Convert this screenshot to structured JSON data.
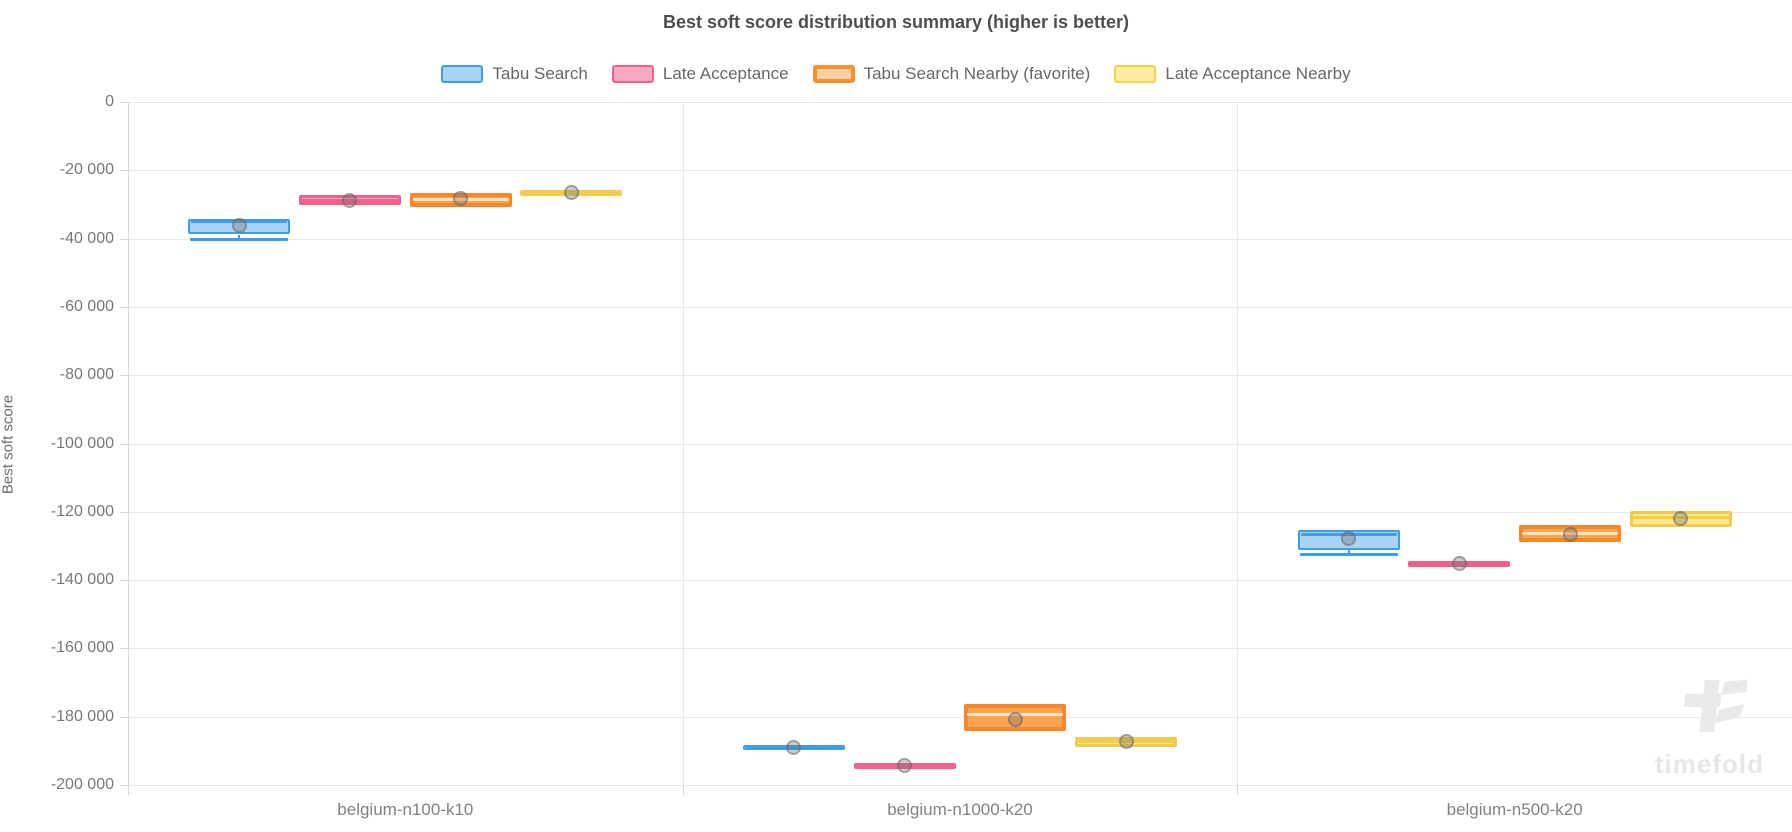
{
  "title": "Best soft score distribution summary (higher is better)",
  "legend": {
    "items": [
      {
        "label": "Tabu Search",
        "fill": "#A9D3F3",
        "border": "#3E9DE5",
        "border_width": 2
      },
      {
        "label": "Late Acceptance",
        "fill": "#F8A9C2",
        "border": "#F0608A",
        "border_width": 2
      },
      {
        "label": "Tabu Search Nearby (favorite)",
        "fill": "#F9CFA3",
        "border": "#F9902F",
        "border_width": 4
      },
      {
        "label": "Late Acceptance Nearby",
        "fill": "#FBEBA3",
        "border": "#F6CF52",
        "border_width": 2
      }
    ]
  },
  "y_axis": {
    "title": "Best soft score",
    "tick_labels": [
      "0",
      "-20 000",
      "-40 000",
      "-60 000",
      "-80 000",
      "-100 000",
      "-120 000",
      "-140 000",
      "-160 000",
      "-180 000",
      "-200 000"
    ]
  },
  "x_axis": {
    "categories": [
      "belgium-n100-k10",
      "belgium-n1000-k20",
      "belgium-n500-k20"
    ]
  },
  "watermark": {
    "text": "timefold"
  },
  "chart_data": {
    "type": "boxplot",
    "title": "Best soft score distribution summary (higher is better)",
    "xlabel": "",
    "ylabel": "Best soft score",
    "ylim": [
      -200000,
      0
    ],
    "grid": true,
    "legend_position": "top",
    "categories": [
      "belgium-n100-k10",
      "belgium-n1000-k20",
      "belgium-n500-k20"
    ],
    "series": [
      {
        "name": "Tabu Search",
        "border": "#3E9DE5",
        "fill": "#A9D3F3",
        "median_color": "#3E9DE5",
        "border_width": 2.5,
        "boxes": [
          {
            "low": -40100,
            "q1": -38800,
            "median": -35100,
            "q3": -34300,
            "high": -34100,
            "mean": -36200
          },
          {
            "low": -190100,
            "q1": -189900,
            "median": -189000,
            "q3": -188200,
            "high": -188000,
            "mean": -189100
          },
          {
            "low": -132400,
            "q1": -131300,
            "median": -126600,
            "q3": -125400,
            "high": -125100,
            "mean": -127800
          }
        ]
      },
      {
        "name": "Late Acceptance",
        "border": "#F0608A",
        "fill": "#F8A9C2",
        "median_color": "#F0608A",
        "border_width": 3,
        "boxes": [
          {
            "low": -30400,
            "q1": -30100,
            "median": -28800,
            "q3": -27300,
            "high": -27000,
            "mean": -28700
          },
          {
            "low": -195300,
            "q1": -195100,
            "median": -194400,
            "q3": -193700,
            "high": -193500,
            "mean": -194400
          },
          {
            "low": -136200,
            "q1": -135900,
            "median": -135100,
            "q3": -134300,
            "high": -134000,
            "mean": -135100
          }
        ]
      },
      {
        "name": "Tabu Search Nearby (favorite)",
        "border": "#F8872B",
        "fill": "#FAA552",
        "median_color": "rgba(255,236,214,0.85)",
        "border_width": 4,
        "boxes": [
          {
            "low": -31100,
            "q1": -30700,
            "median": -28500,
            "q3": -26700,
            "high": -26300,
            "mean": -28400
          },
          {
            "low": -184600,
            "q1": -184200,
            "median": -179300,
            "q3": -176300,
            "high": -175900,
            "mean": -180800
          },
          {
            "low": -129100,
            "q1": -128800,
            "median": -126500,
            "q3": -123900,
            "high": -123500,
            "mean": -126600
          }
        ]
      },
      {
        "name": "Late Acceptance Nearby",
        "border": "#F2CB4E",
        "fill": "#FBE88F",
        "median_color": "#F2CB4E",
        "border_width": 3,
        "boxes": [
          {
            "low": -27500,
            "q1": -27200,
            "median": -26500,
            "q3": -25900,
            "high": -25600,
            "mean": -26400
          },
          {
            "low": -189200,
            "q1": -188900,
            "median": -187300,
            "q3": -185900,
            "high": -185600,
            "mean": -187300
          },
          {
            "low": -124700,
            "q1": -124400,
            "median": -121800,
            "q3": -119700,
            "high": -119400,
            "mean": -121900
          }
        ]
      }
    ]
  }
}
